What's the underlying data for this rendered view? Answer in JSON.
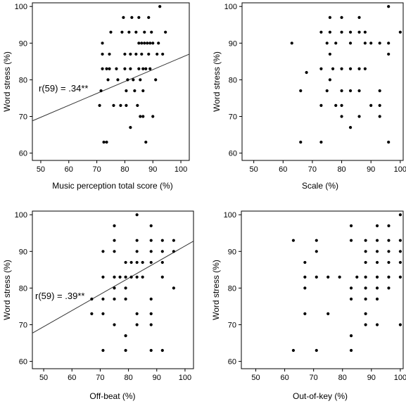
{
  "chart_data": [
    {
      "type": "scatter",
      "xlabel": "Music perception total score (%)",
      "ylabel": "Word stress (%)",
      "xlim": [
        47,
        103
      ],
      "ylim": [
        58,
        101
      ],
      "xticks": [
        50,
        60,
        70,
        80,
        90,
        100
      ],
      "yticks": [
        60,
        70,
        80,
        90,
        100
      ],
      "annotation": "r(59) = .34**",
      "fit_line": [
        [
          47,
          68.8
        ],
        [
          103,
          87.0
        ]
      ],
      "points": [
        [
          71,
          73
        ],
        [
          71.5,
          77
        ],
        [
          72,
          90
        ],
        [
          72,
          87
        ],
        [
          72,
          83
        ],
        [
          72.5,
          63
        ],
        [
          73.5,
          83
        ],
        [
          73.5,
          63
        ],
        [
          74,
          80
        ],
        [
          74.5,
          83
        ],
        [
          74.5,
          87
        ],
        [
          75,
          93
        ],
        [
          76,
          73
        ],
        [
          77,
          83
        ],
        [
          77.5,
          80
        ],
        [
          78.5,
          73
        ],
        [
          79,
          93
        ],
        [
          79.5,
          97
        ],
        [
          80,
          87
        ],
        [
          80,
          83
        ],
        [
          80.5,
          77
        ],
        [
          80.5,
          73
        ],
        [
          81,
          80
        ],
        [
          81.5,
          93
        ],
        [
          82,
          67
        ],
        [
          82,
          87
        ],
        [
          82,
          83
        ],
        [
          82.5,
          97
        ],
        [
          83,
          80
        ],
        [
          83.5,
          77
        ],
        [
          84,
          93
        ],
        [
          84,
          87
        ],
        [
          84.5,
          73
        ],
        [
          85,
          97
        ],
        [
          85,
          90
        ],
        [
          85,
          83
        ],
        [
          85.5,
          80
        ],
        [
          85.5,
          70
        ],
        [
          86,
          90
        ],
        [
          86,
          87
        ],
        [
          86.5,
          83
        ],
        [
          86.5,
          77
        ],
        [
          86.5,
          70
        ],
        [
          87,
          90
        ],
        [
          87,
          93
        ],
        [
          87.5,
          83
        ],
        [
          87.5,
          63
        ],
        [
          88,
          90
        ],
        [
          88.5,
          97
        ],
        [
          88.5,
          87
        ],
        [
          89,
          90
        ],
        [
          89,
          83
        ],
        [
          89.5,
          93
        ],
        [
          90,
          90
        ],
        [
          90,
          70
        ],
        [
          91,
          80
        ],
        [
          91.5,
          87
        ],
        [
          92,
          90
        ],
        [
          92.5,
          100
        ],
        [
          93.5,
          87
        ],
        [
          94.5,
          93
        ]
      ]
    },
    {
      "type": "scatter",
      "xlabel": "Scale (%)",
      "ylabel": "Word stress (%)",
      "xlim": [
        46,
        101
      ],
      "ylim": [
        58,
        101
      ],
      "xticks": [
        50,
        60,
        70,
        80,
        90,
        100
      ],
      "yticks": [
        60,
        70,
        80,
        90,
        100
      ],
      "points": [
        [
          63,
          90
        ],
        [
          66,
          77
        ],
        [
          66,
          63
        ],
        [
          68,
          82
        ],
        [
          73,
          93
        ],
        [
          73,
          83
        ],
        [
          73,
          73
        ],
        [
          73,
          63
        ],
        [
          75,
          90
        ],
        [
          75,
          77
        ],
        [
          76,
          97
        ],
        [
          76,
          93
        ],
        [
          76,
          87
        ],
        [
          76,
          80
        ],
        [
          77,
          83
        ],
        [
          78,
          73
        ],
        [
          78,
          90
        ],
        [
          80,
          97
        ],
        [
          80,
          93
        ],
        [
          80,
          83
        ],
        [
          80,
          77
        ],
        [
          80,
          73
        ],
        [
          80,
          70
        ],
        [
          83,
          93
        ],
        [
          83,
          90
        ],
        [
          83,
          83
        ],
        [
          83,
          77
        ],
        [
          83,
          67
        ],
        [
          86,
          93
        ],
        [
          86,
          83
        ],
        [
          86,
          77
        ],
        [
          86,
          70
        ],
        [
          86,
          97
        ],
        [
          88,
          93
        ],
        [
          88,
          90
        ],
        [
          88,
          83
        ],
        [
          90,
          73
        ],
        [
          90,
          90
        ],
        [
          93,
          77
        ],
        [
          93,
          73
        ],
        [
          93,
          70
        ],
        [
          93,
          90
        ],
        [
          96,
          100
        ],
        [
          96,
          90
        ],
        [
          96,
          87
        ],
        [
          96,
          63
        ],
        [
          100,
          93
        ]
      ]
    },
    {
      "type": "scatter",
      "xlabel": "Off-beat (%)",
      "ylabel": "Word stress (%)",
      "xlim": [
        46,
        103
      ],
      "ylim": [
        58,
        101
      ],
      "xticks": [
        50,
        60,
        70,
        80,
        90,
        100
      ],
      "yticks": [
        60,
        70,
        80,
        90,
        100
      ],
      "annotation": "r(59) = .39**",
      "fit_line": [
        [
          46,
          67.7
        ],
        [
          103,
          92.8
        ]
      ],
      "points": [
        [
          67,
          77
        ],
        [
          67,
          73
        ],
        [
          71,
          90
        ],
        [
          71,
          83
        ],
        [
          71,
          77
        ],
        [
          71,
          73
        ],
        [
          71,
          63
        ],
        [
          75,
          97
        ],
        [
          75,
          93
        ],
        [
          75,
          90
        ],
        [
          75,
          83
        ],
        [
          75,
          80
        ],
        [
          75,
          77
        ],
        [
          75,
          70
        ],
        [
          77,
          83
        ],
        [
          79,
          87
        ],
        [
          79,
          83
        ],
        [
          79,
          80
        ],
        [
          79,
          77
        ],
        [
          79,
          67
        ],
        [
          79,
          63
        ],
        [
          81,
          87
        ],
        [
          81,
          83
        ],
        [
          83,
          100
        ],
        [
          83,
          93
        ],
        [
          83,
          90
        ],
        [
          83,
          87
        ],
        [
          83,
          83
        ],
        [
          83,
          73
        ],
        [
          83,
          70
        ],
        [
          85,
          87
        ],
        [
          85,
          83
        ],
        [
          88,
          97
        ],
        [
          88,
          93
        ],
        [
          88,
          90
        ],
        [
          88,
          87
        ],
        [
          88,
          77
        ],
        [
          88,
          73
        ],
        [
          88,
          70
        ],
        [
          88,
          63
        ],
        [
          92,
          93
        ],
        [
          92,
          90
        ],
        [
          92,
          87
        ],
        [
          92,
          83
        ],
        [
          92,
          63
        ],
        [
          96,
          93
        ],
        [
          96,
          90
        ],
        [
          96,
          80
        ]
      ]
    },
    {
      "type": "scatter",
      "xlabel": "Out-of-key (%)",
      "ylabel": "Word stress (%)",
      "xlim": [
        45,
        101
      ],
      "ylim": [
        58,
        101
      ],
      "xticks": [
        50,
        60,
        70,
        80,
        90,
        100
      ],
      "yticks": [
        60,
        70,
        80,
        90,
        100
      ],
      "points": [
        [
          63,
          93
        ],
        [
          63,
          63
        ],
        [
          67,
          87
        ],
        [
          67,
          83
        ],
        [
          67,
          80
        ],
        [
          67,
          73
        ],
        [
          71,
          93
        ],
        [
          71,
          90
        ],
        [
          71,
          83
        ],
        [
          71,
          63
        ],
        [
          75,
          83
        ],
        [
          75,
          73
        ],
        [
          79,
          83
        ],
        [
          83,
          97
        ],
        [
          83,
          93
        ],
        [
          83,
          80
        ],
        [
          83,
          77
        ],
        [
          83,
          67
        ],
        [
          83,
          63
        ],
        [
          85,
          83
        ],
        [
          88,
          93
        ],
        [
          88,
          90
        ],
        [
          88,
          87
        ],
        [
          88,
          83
        ],
        [
          88,
          80
        ],
        [
          88,
          77
        ],
        [
          88,
          73
        ],
        [
          88,
          70
        ],
        [
          92,
          97
        ],
        [
          92,
          93
        ],
        [
          92,
          90
        ],
        [
          92,
          87
        ],
        [
          92,
          83
        ],
        [
          92,
          80
        ],
        [
          92,
          77
        ],
        [
          92,
          70
        ],
        [
          96,
          97
        ],
        [
          96,
          93
        ],
        [
          96,
          90
        ],
        [
          96,
          87
        ],
        [
          96,
          83
        ],
        [
          96,
          80
        ],
        [
          100,
          100
        ],
        [
          100,
          93
        ],
        [
          100,
          90
        ],
        [
          100,
          87
        ],
        [
          100,
          83
        ],
        [
          100,
          70
        ]
      ]
    }
  ]
}
